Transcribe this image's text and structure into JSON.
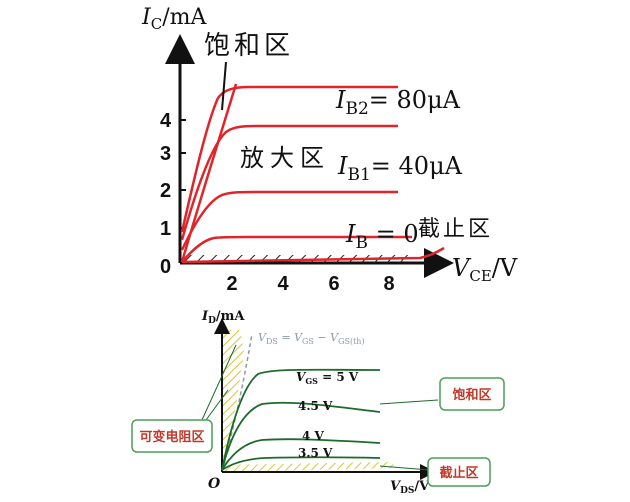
{
  "top_chart": {
    "y_axis": {
      "symbol": "I",
      "sub": "C",
      "unit": "/mA",
      "ticks": [
        "1",
        "2",
        "3",
        "4"
      ]
    },
    "x_axis": {
      "symbol": "V",
      "sub": "CE",
      "unit": "/V",
      "ticks": [
        "2",
        "4",
        "6",
        "8"
      ]
    },
    "origin": "0",
    "region_labels": {
      "saturation": "饱和区",
      "active": "放大区",
      "cutoff": "截止区"
    },
    "curve_labels": [
      {
        "symbol": "I",
        "sub": "B2",
        "value": "= 80μA"
      },
      {
        "symbol": "I",
        "sub": "B1",
        "value": "= 40μA"
      },
      {
        "symbol": "I",
        "sub": "B",
        "value": " = 0"
      }
    ],
    "colors": {
      "curve": "#e0242a",
      "axis": "#111111"
    }
  },
  "bottom_chart": {
    "y_axis": {
      "symbol": "I",
      "sub": "D",
      "unit": "/mA"
    },
    "x_axis": {
      "symbol": "V",
      "sub": "DS",
      "unit": "/V"
    },
    "origin": "O",
    "boundary_equation": {
      "p1": "V",
      "p1sub": "DS",
      "eq": " = ",
      "p2": "V",
      "p2sub": "GS",
      "minus": " − ",
      "p3": "V",
      "p3sub": "GS(th)"
    },
    "curve_labels": [
      "V_GS = 5 V",
      "4.5 V",
      "4 V",
      "3.5 V"
    ],
    "vgs_label": {
      "symbol": "V",
      "sub": "GS",
      "value": " = 5 V"
    },
    "callouts": {
      "saturation": "饱和区",
      "ohmic": "可变电阻区",
      "cutoff": "截止区"
    },
    "colors": {
      "curve": "#1d6b2a",
      "callout_text": "#c0392b",
      "callout_border": "#4a9e5a",
      "hatch": "#d9c63a"
    }
  }
}
